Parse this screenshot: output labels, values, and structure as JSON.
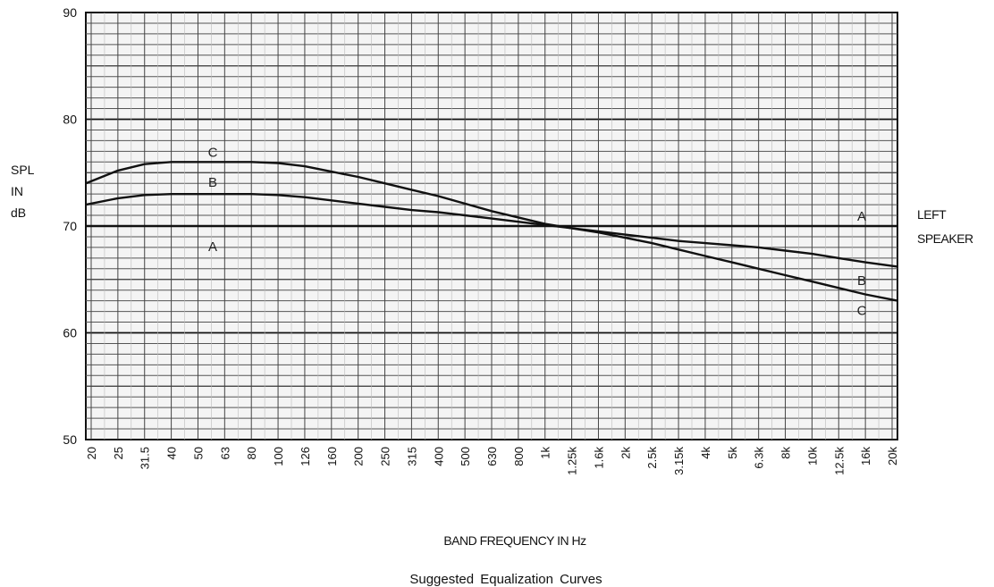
{
  "chart_data": {
    "type": "line",
    "caption": "Suggested Equalization Curves",
    "xlabel": "BAND FREQUENCY IN Hz",
    "ylabel": [
      "SPL",
      "IN",
      "dB"
    ],
    "right_label": [
      "LEFT",
      "SPEAKER"
    ],
    "ylim": [
      50,
      90
    ],
    "yticks": [
      "50",
      "60",
      "70",
      "80",
      "90"
    ],
    "categories": [
      "20",
      "25",
      "31.5",
      "40",
      "50",
      "63",
      "80",
      "100",
      "126",
      "160",
      "200",
      "250",
      "315",
      "400",
      "500",
      "630",
      "800",
      "1k",
      "1.25k",
      "1.6k",
      "2k",
      "2.5k",
      "3.15k",
      "4k",
      "5k",
      "6.3k",
      "8k",
      "10k",
      "12.5k",
      "16k",
      "20k"
    ],
    "series": [
      {
        "name": "A",
        "values": [
          70,
          70,
          70,
          70,
          70,
          70,
          70,
          70,
          70,
          70,
          70,
          70,
          70,
          70,
          70,
          70,
          70,
          70,
          70,
          70,
          70,
          70,
          70,
          70,
          70,
          70,
          70,
          70,
          70,
          70,
          70
        ]
      },
      {
        "name": "B",
        "values": [
          72,
          72.6,
          72.9,
          73,
          73,
          73,
          73,
          72.9,
          72.7,
          72.4,
          72.1,
          71.8,
          71.5,
          71.3,
          71.0,
          70.7,
          70.4,
          70.1,
          69.8,
          69.5,
          69.2,
          68.9,
          68.6,
          68.4,
          68.2,
          68.0,
          67.7,
          67.4,
          67.0,
          66.6,
          66.2
        ]
      },
      {
        "name": "C",
        "values": [
          74,
          75.2,
          75.8,
          76,
          76,
          76,
          76,
          75.9,
          75.6,
          75.1,
          74.6,
          74.0,
          73.4,
          72.8,
          72.1,
          71.4,
          70.8,
          70.2,
          69.8,
          69.4,
          68.9,
          68.4,
          67.8,
          67.2,
          66.6,
          66.0,
          65.4,
          64.8,
          64.2,
          63.6,
          63.0
        ]
      }
    ],
    "grid": true,
    "legend": "letters at line ends"
  }
}
